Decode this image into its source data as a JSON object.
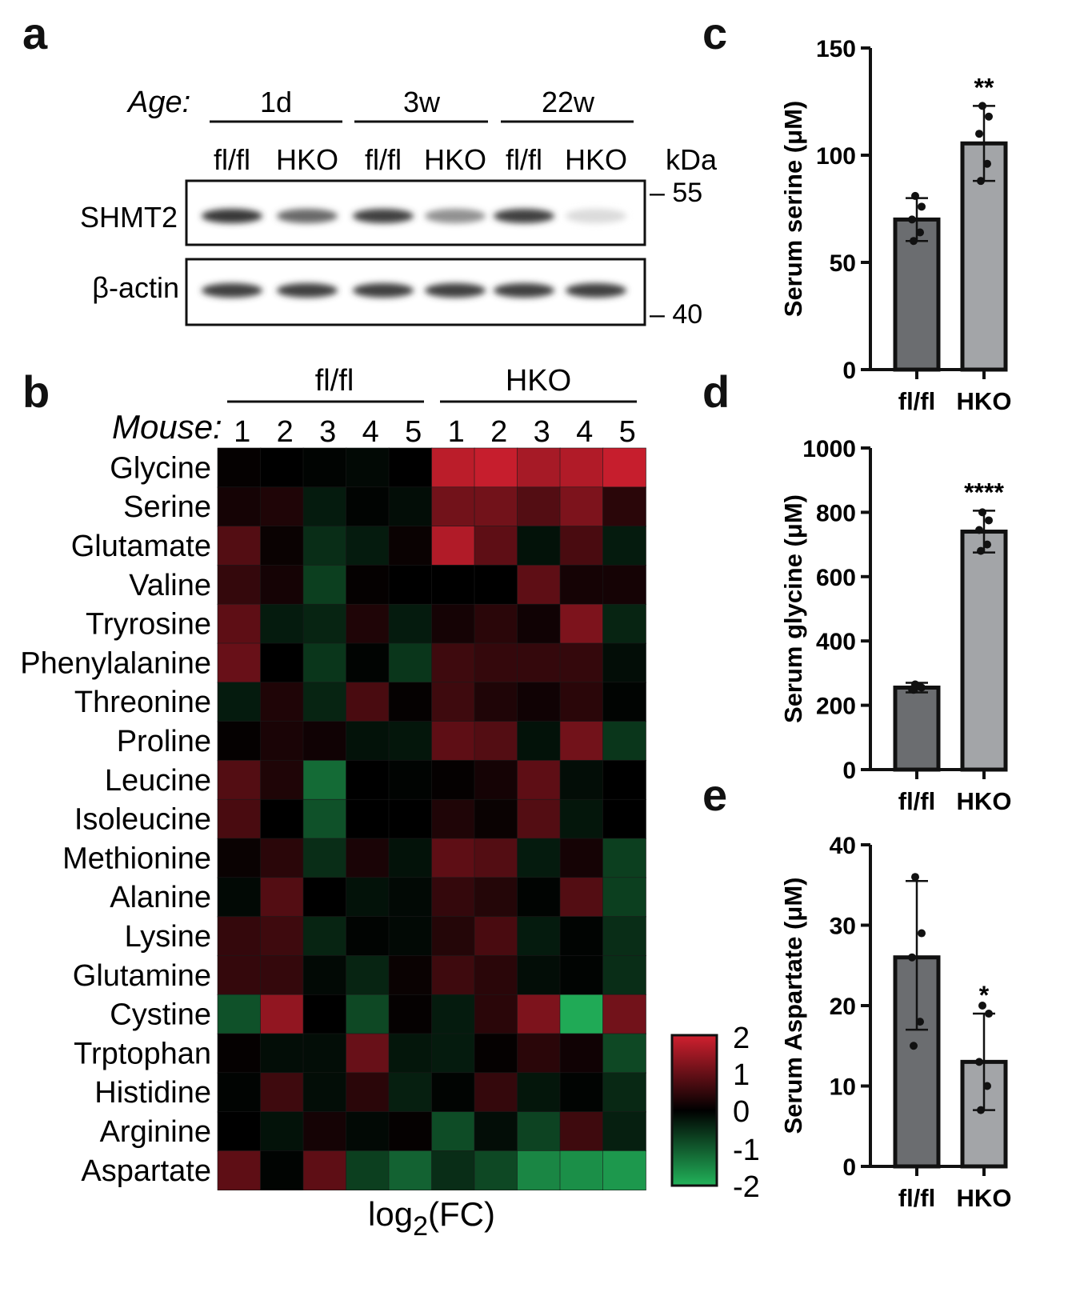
{
  "panels": {
    "a": "a",
    "b": "b",
    "c": "c",
    "d": "d",
    "e": "e"
  },
  "blot": {
    "age_label": "Age:",
    "ages": [
      "1d",
      "3w",
      "22w"
    ],
    "genotypes": [
      "fl/fl",
      "HKO",
      "fl/fl",
      "HKO",
      "fl/fl",
      "HKO"
    ],
    "kda_label": "kDa",
    "markers": [
      "– 55",
      "– 40"
    ],
    "rows": [
      {
        "label": "SHMT2",
        "band_intensities": [
          0.9,
          0.65,
          0.85,
          0.45,
          0.85,
          0.08
        ]
      },
      {
        "label": "β-actin",
        "band_intensities": [
          0.85,
          0.85,
          0.85,
          0.85,
          0.85,
          0.85
        ]
      }
    ]
  },
  "heatmap": {
    "groups": [
      "fl/fl",
      "HKO"
    ],
    "mouse_label": "Mouse:",
    "mice": [
      "1",
      "2",
      "3",
      "4",
      "5",
      "1",
      "2",
      "3",
      "4",
      "5"
    ],
    "metabolites": [
      "Glycine",
      "Serine",
      "Glutamate",
      "Valine",
      "Tryrosine",
      "Phenylalanine",
      "Threonine",
      "Proline",
      "Leucine",
      "Isoleucine",
      "Methionine",
      "Alanine",
      "Lysine",
      "Glutamine",
      "Cystine",
      "Trptophan",
      "Histidine",
      "Arginine",
      "Aspartate"
    ],
    "values": [
      [
        0.05,
        0.0,
        -0.05,
        -0.1,
        0.0,
        1.8,
        1.9,
        1.6,
        1.7,
        1.9
      ],
      [
        0.2,
        0.3,
        -0.3,
        -0.05,
        -0.15,
        1.1,
        1.1,
        0.8,
        1.2,
        0.4
      ],
      [
        0.8,
        0.1,
        -0.5,
        -0.3,
        0.1,
        1.7,
        0.9,
        -0.2,
        0.7,
        -0.3
      ],
      [
        0.5,
        0.2,
        -0.7,
        0.05,
        0.0,
        0.0,
        0.0,
        0.9,
        0.2,
        0.2
      ],
      [
        0.9,
        -0.3,
        -0.4,
        0.3,
        -0.3,
        0.2,
        0.4,
        0.15,
        1.2,
        -0.4
      ],
      [
        1.0,
        0.0,
        -0.6,
        -0.05,
        -0.6,
        0.6,
        0.5,
        0.5,
        0.5,
        -0.15
      ],
      [
        -0.3,
        0.3,
        -0.4,
        0.7,
        0.05,
        0.6,
        0.3,
        0.15,
        0.4,
        -0.05
      ],
      [
        0.05,
        0.25,
        0.15,
        -0.2,
        -0.25,
        0.9,
        0.8,
        -0.2,
        1.1,
        -0.6
      ],
      [
        0.8,
        0.3,
        -1.2,
        0.0,
        -0.05,
        0.05,
        0.2,
        0.9,
        -0.15,
        0.0
      ],
      [
        0.7,
        0.0,
        -0.9,
        0.0,
        0.0,
        0.3,
        0.1,
        0.8,
        -0.25,
        0.0
      ],
      [
        0.1,
        0.4,
        -0.5,
        0.25,
        -0.2,
        0.9,
        0.8,
        -0.3,
        0.2,
        -0.7
      ],
      [
        -0.1,
        0.8,
        0.0,
        -0.2,
        -0.1,
        0.5,
        0.35,
        -0.05,
        0.8,
        -0.7
      ],
      [
        0.5,
        0.6,
        -0.4,
        -0.05,
        -0.1,
        0.35,
        0.7,
        -0.3,
        -0.05,
        -0.5
      ],
      [
        0.5,
        0.5,
        -0.1,
        -0.4,
        0.1,
        0.6,
        0.4,
        -0.15,
        -0.05,
        -0.5
      ],
      [
        -0.9,
        1.4,
        0.0,
        -0.8,
        0.05,
        -0.3,
        0.4,
        1.2,
        -1.9,
        1.1
      ],
      [
        0.05,
        -0.15,
        -0.15,
        1.0,
        -0.25,
        -0.3,
        0.05,
        0.4,
        0.15,
        -0.8
      ],
      [
        -0.05,
        0.6,
        -0.15,
        0.4,
        -0.35,
        -0.05,
        0.5,
        -0.25,
        -0.05,
        -0.45
      ],
      [
        0.0,
        -0.2,
        0.2,
        -0.1,
        0.05,
        -0.85,
        -0.15,
        -0.75,
        0.6,
        -0.35
      ],
      [
        0.9,
        -0.05,
        0.9,
        -0.7,
        -1.1,
        -0.5,
        -0.8,
        -1.5,
        -1.6,
        -1.7
      ]
    ],
    "colorbar_ticks": [
      "2",
      "1",
      "0",
      "-1",
      "-2"
    ],
    "xlabel": "log",
    "xlabel_sub": "2",
    "xlabel_end": "(FC)"
  },
  "chart_data": [
    {
      "type": "bar",
      "panel": "c",
      "categories": [
        "fl/fl",
        "HKO"
      ],
      "values": [
        70,
        105.5
      ],
      "error": [
        [
          60,
          80
        ],
        [
          88,
          123
        ]
      ],
      "points": [
        [
          81,
          76,
          70,
          64,
          60
        ],
        [
          123,
          118,
          110,
          96,
          88
        ]
      ],
      "significance": [
        "",
        "**"
      ],
      "ylabel": "Serum serine (μM)",
      "ylim": [
        0,
        150
      ],
      "yticks": [
        0,
        50,
        100,
        150
      ]
    },
    {
      "type": "bar",
      "panel": "d",
      "categories": [
        "fl/fl",
        "HKO"
      ],
      "values": [
        255,
        740
      ],
      "error": [
        [
          240,
          270
        ],
        [
          675,
          805
        ]
      ],
      "points": [
        [
          265,
          255,
          250,
          258,
          248
        ],
        [
          800,
          775,
          745,
          700,
          680
        ]
      ],
      "significance": [
        "",
        "****"
      ],
      "ylabel": "Serum glycine (μM)",
      "ylim": [
        0,
        1000
      ],
      "yticks": [
        0,
        200,
        400,
        600,
        800,
        1000
      ]
    },
    {
      "type": "bar",
      "panel": "e",
      "categories": [
        "fl/fl",
        "HKO"
      ],
      "values": [
        26,
        13
      ],
      "error": [
        [
          17,
          35.5
        ],
        [
          7,
          19
        ]
      ],
      "points": [
        [
          36,
          29,
          26,
          18,
          15
        ],
        [
          20,
          19,
          13,
          10,
          7
        ]
      ],
      "significance": [
        "",
        "*"
      ],
      "ylabel": "Serum Aspartate (μM)",
      "ylim": [
        0,
        40
      ],
      "yticks": [
        0,
        10,
        20,
        30,
        40
      ]
    }
  ],
  "colors": {
    "flfl_bar": "#6b6d70",
    "hko_bar": "#a3a5a8",
    "heat_pos": "#d0202f",
    "heat_neg": "#22b35a"
  }
}
